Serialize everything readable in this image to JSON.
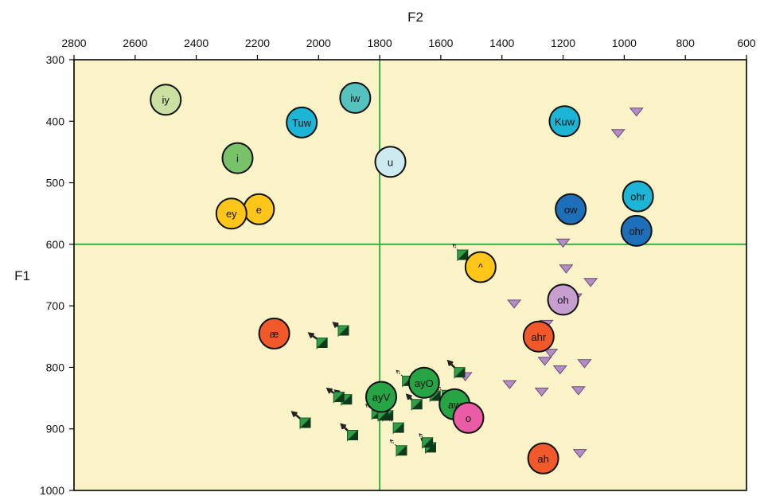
{
  "chart_data": {
    "type": "scatter",
    "title": "",
    "xlabel": "F2",
    "ylabel": "F1",
    "x_axis": {
      "min": 600,
      "max": 2800,
      "reversed": true,
      "position": "top",
      "ticks": [
        "2800",
        "2600",
        "2400",
        "2200",
        "2000",
        "1800",
        "1600",
        "1400",
        "1200",
        "1000",
        "800",
        "600"
      ]
    },
    "y_axis": {
      "min": 300,
      "max": 1000,
      "reversed": true,
      "ticks": [
        "300",
        "400",
        "500",
        "600",
        "700",
        "800",
        "900",
        "1000"
      ]
    },
    "plot_background": "#faf3c8",
    "reference_lines": {
      "color": "#3cb043",
      "x": 1800,
      "y": 600
    },
    "vowel_means": [
      {
        "label": "iy",
        "x": 2500,
        "y": 365,
        "color": "#c9e0a0"
      },
      {
        "label": "iw",
        "x": 1880,
        "y": 362,
        "color": "#56c2c0"
      },
      {
        "label": "Tuw",
        "x": 2055,
        "y": 402,
        "color": "#1cb5d6"
      },
      {
        "label": "Kuw",
        "x": 1195,
        "y": 400,
        "color": "#1cb5d6"
      },
      {
        "label": "i",
        "x": 2265,
        "y": 460,
        "color": "#78c26a"
      },
      {
        "label": "u",
        "x": 1765,
        "y": 466,
        "color": "#cdeaf0"
      },
      {
        "label": "ohr",
        "x": 955,
        "y": 522,
        "color": "#1cb5d6"
      },
      {
        "label": "ow",
        "x": 1175,
        "y": 543,
        "color": "#1e6fba"
      },
      {
        "label": "e",
        "x": 2195,
        "y": 543,
        "color": "#ffc519"
      },
      {
        "label": "ey",
        "x": 2285,
        "y": 550,
        "color": "#ffc519"
      },
      {
        "label": "ohr",
        "x": 960,
        "y": 578,
        "color": "#1e6fba"
      },
      {
        "label": "^",
        "x": 1470,
        "y": 637,
        "color": "#ffc519"
      },
      {
        "label": "oh",
        "x": 1200,
        "y": 690,
        "color": "#c69fd0"
      },
      {
        "label": "æ",
        "x": 2145,
        "y": 745,
        "color": "#f2592a"
      },
      {
        "label": "ahr",
        "x": 1280,
        "y": 750,
        "color": "#f2592a"
      },
      {
        "label": "ayO",
        "x": 1655,
        "y": 825,
        "color": "#27a443"
      },
      {
        "label": "ayV",
        "x": 1795,
        "y": 848,
        "color": "#27a443"
      },
      {
        "label": "aw",
        "x": 1555,
        "y": 860,
        "color": "#27a443"
      },
      {
        "label": "o",
        "x": 1510,
        "y": 882,
        "color": "#ea5ca6"
      },
      {
        "label": "ah",
        "x": 1265,
        "y": 948,
        "color": "#f2592a"
      }
    ],
    "purple_tokens": [
      [
        960,
        385
      ],
      [
        1020,
        420
      ],
      [
        1200,
        598
      ],
      [
        1190,
        640
      ],
      [
        1110,
        662
      ],
      [
        1360,
        697
      ],
      [
        1160,
        687
      ],
      [
        1255,
        730
      ],
      [
        1240,
        777
      ],
      [
        1260,
        790
      ],
      [
        1210,
        804
      ],
      [
        1130,
        794
      ],
      [
        1520,
        815
      ],
      [
        1375,
        828
      ],
      [
        1270,
        840
      ],
      [
        1150,
        838
      ],
      [
        1510,
        880
      ],
      [
        1145,
        940
      ]
    ],
    "green_tokens": [
      {
        "x": 1530,
        "y": 617,
        "from": [
          1560,
          600
        ],
        "bold": false
      },
      {
        "x": 1990,
        "y": 760,
        "from": [
          2030,
          745
        ],
        "bold": true
      },
      {
        "x": 1920,
        "y": 740,
        "from": [
          1950,
          728
        ],
        "bold": true
      },
      {
        "x": 1540,
        "y": 808,
        "from": [
          1575,
          790
        ],
        "bold": true
      },
      {
        "x": 1710,
        "y": 822,
        "from": [
          1745,
          805
        ],
        "bold": false
      },
      {
        "x": 1910,
        "y": 852,
        "from": [
          1945,
          838
        ],
        "bold": true
      },
      {
        "x": 1935,
        "y": 848,
        "from": [
          1970,
          835
        ],
        "bold": true
      },
      {
        "x": 1785,
        "y": 855,
        "from": [
          1820,
          840
        ],
        "bold": true
      },
      {
        "x": 1680,
        "y": 860,
        "from": [
          1710,
          845
        ],
        "bold": true
      },
      {
        "x": 1620,
        "y": 846,
        "from": [
          1650,
          832
        ],
        "bold": false
      },
      {
        "x": 1580,
        "y": 845,
        "from": [
          1610,
          832
        ],
        "bold": false
      },
      {
        "x": 1775,
        "y": 878,
        "from": [
          1810,
          863
        ],
        "bold": true
      },
      {
        "x": 1810,
        "y": 875,
        "from": [
          1845,
          860
        ],
        "bold": false
      },
      {
        "x": 1550,
        "y": 853,
        "from": [
          1575,
          840
        ],
        "bold": false
      },
      {
        "x": 1890,
        "y": 910,
        "from": [
          1925,
          893
        ],
        "bold": true
      },
      {
        "x": 2045,
        "y": 890,
        "from": [
          2085,
          873
        ],
        "bold": true
      },
      {
        "x": 1490,
        "y": 877,
        "from": [
          1520,
          860
        ],
        "bold": true
      },
      {
        "x": 1740,
        "y": 898,
        "from": [
          1770,
          882
        ],
        "bold": false
      },
      {
        "x": 1730,
        "y": 935,
        "from": [
          1765,
          918
        ],
        "bold": false
      },
      {
        "x": 1635,
        "y": 930,
        "from": [
          1665,
          915
        ],
        "bold": false
      },
      {
        "x": 1645,
        "y": 922,
        "from": [
          1670,
          908
        ],
        "bold": false
      },
      {
        "x": 1790,
        "y": 878,
        "from": [
          1810,
          866
        ],
        "bold": false
      }
    ]
  }
}
